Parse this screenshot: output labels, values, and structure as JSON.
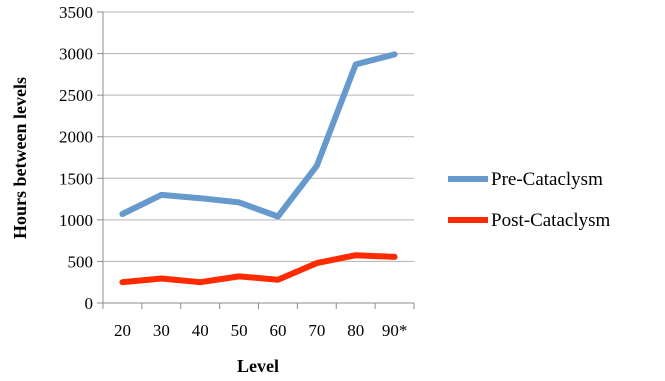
{
  "chart_data": {
    "type": "line",
    "title": "",
    "xlabel": "Level",
    "ylabel": "Hours between levels",
    "categories": [
      "20",
      "30",
      "40",
      "50",
      "60",
      "70",
      "80",
      "90*"
    ],
    "ylim": [
      0,
      3500
    ],
    "yticks": [
      0,
      500,
      1000,
      1500,
      2000,
      2500,
      3000,
      3500
    ],
    "grid": true,
    "legend_position": "right",
    "series": [
      {
        "name": "Pre-Cataclysm",
        "color": "#6699cc",
        "values": [
          1070,
          1300,
          1260,
          1210,
          1040,
          1650,
          2870,
          2990
        ]
      },
      {
        "name": "Post-Cataclysm",
        "color": "#ff2a00",
        "values": [
          250,
          295,
          250,
          320,
          280,
          480,
          575,
          555
        ]
      }
    ]
  }
}
